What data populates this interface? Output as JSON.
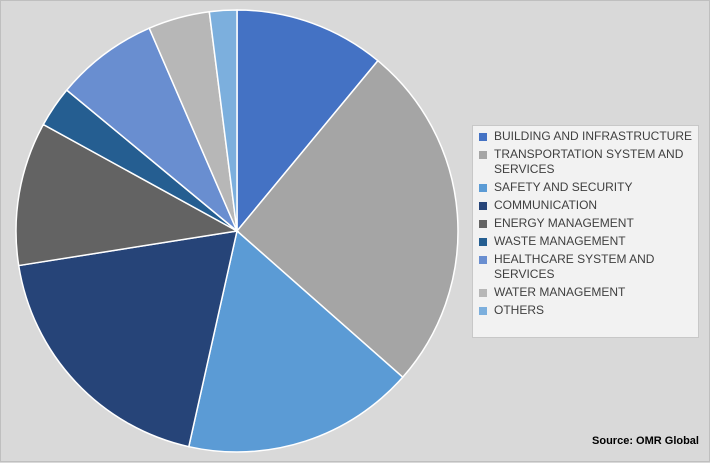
{
  "chart_data": {
    "type": "pie",
    "title": "",
    "start_angle_deg": 0,
    "direction": "clockwise",
    "legend_position": "right",
    "slices": [
      {
        "label": "BUILDING AND INFRASTRUCTURE",
        "value": 11.0,
        "color": "#4472c4"
      },
      {
        "label": "TRANSPORTATION SYSTEM AND SERVICES",
        "value": 25.5,
        "color": "#a5a5a5"
      },
      {
        "label": "SAFETY AND SECURITY",
        "value": 17.0,
        "color": "#5b9bd5"
      },
      {
        "label": "COMMUNICATION",
        "value": 19.0,
        "color": "#264478"
      },
      {
        "label": "ENERGY MANAGEMENT",
        "value": 10.5,
        "color": "#636363"
      },
      {
        "label": "WASTE MANAGEMENT",
        "value": 3.0,
        "color": "#255e91"
      },
      {
        "label": "HEALTHCARE SYSTEM AND SERVICES",
        "value": 7.5,
        "color": "#698ed0"
      },
      {
        "label": "WATER MANAGEMENT",
        "value": 4.5,
        "color": "#b7b7b7"
      },
      {
        "label": "OTHERS",
        "value": 2.0,
        "color": "#7cafdd"
      }
    ]
  },
  "source": "Source: OMR Global"
}
